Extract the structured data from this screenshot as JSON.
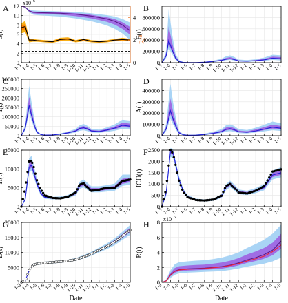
{
  "figure": {
    "xlabel_left": "Date",
    "xlabel_right": "Date"
  },
  "colors": {
    "band_outer": "#a9d4f5",
    "band_inner": "#9d5be0",
    "line_blue": "#1f1fd6",
    "line_purple": "#5a1a8a",
    "rt_band_outer": "#f7b21a",
    "rt_band_inner": "#ff7a00",
    "rt_line": "#000000",
    "rt_axis": "#e8742a",
    "obs_marker": "#000000",
    "r_obs_line": "#e8203a"
  },
  "date_ticks": [
    "1-3",
    "1-4",
    "1-5",
    "1-6",
    "1-7",
    "1-8",
    "1-9",
    "1-10",
    "1-11",
    "1-12",
    "1-1",
    "1-2",
    "1-3",
    "1-4",
    "1-5"
  ],
  "chart_data": [
    {
      "panel": "A",
      "type": "area",
      "ylabel": "S(t)",
      "y2label": "R",
      "y2label_sub": "0",
      "y2label_sup": "eff",
      "y_exponent_label": "x10",
      "y_exponent_power": "6",
      "ylim": [
        0,
        12000000
      ],
      "yticks": [
        "0",
        "2",
        "4",
        "6",
        "8",
        "10",
        "12"
      ],
      "y2lim": [
        0,
        5
      ],
      "y2ticks": [
        "0",
        "2",
        "4"
      ],
      "x": [
        0,
        0.5,
        1,
        1.5,
        2,
        3,
        4,
        5,
        6,
        7,
        8,
        9,
        10,
        11,
        12,
        13,
        14
      ],
      "series": [
        {
          "name": "S(t)",
          "values": [
            12000000,
            11800000,
            11000000,
            10700000,
            10650000,
            10600000,
            10550000,
            10500000,
            10400000,
            10300000,
            10100000,
            9900000,
            9600000,
            9300000,
            8800000,
            8000000,
            6800000
          ],
          "lo95": [
            12000000,
            11700000,
            10700000,
            10200000,
            10100000,
            10000000,
            9900000,
            9800000,
            9600000,
            9400000,
            9100000,
            8800000,
            8400000,
            7900000,
            7200000,
            6200000,
            4800000
          ],
          "hi95": [
            12000000,
            11900000,
            11300000,
            11100000,
            11050000,
            11000000,
            10950000,
            10900000,
            10850000,
            10800000,
            10650000,
            10500000,
            10300000,
            10100000,
            9800000,
            9300000,
            8500000
          ]
        },
        {
          "name": "Reff",
          "axis": "right",
          "values": [
            3.1,
            3.2,
            2.0,
            2.0,
            1.95,
            1.9,
            1.85,
            2.05,
            2.1,
            1.9,
            2.05,
            1.9,
            1.85,
            1.9,
            2.0,
            2.05,
            2.0
          ],
          "lo95": [
            2.6,
            2.7,
            1.8,
            1.85,
            1.85,
            1.8,
            1.75,
            1.9,
            1.95,
            1.8,
            1.9,
            1.8,
            1.75,
            1.8,
            1.9,
            1.9,
            1.9
          ],
          "hi95": [
            3.5,
            3.7,
            2.15,
            2.1,
            2.05,
            2.0,
            1.95,
            2.2,
            2.25,
            2.0,
            2.15,
            2.0,
            1.95,
            2.0,
            2.1,
            2.2,
            2.1
          ]
        },
        {
          "name": "threshold",
          "axis": "right",
          "values": [
            1,
            1
          ],
          "x": [
            0,
            14
          ],
          "dashed": true
        }
      ]
    },
    {
      "panel": "B",
      "type": "area",
      "ylabel": "E(t)",
      "ylim": [
        0,
        1000000
      ],
      "yticks": [
        "0",
        "200000",
        "400000",
        "600000",
        "800000"
      ],
      "x": [
        0,
        0.5,
        0.8,
        1.2,
        1.6,
        2,
        2.5,
        3,
        4,
        5,
        6,
        7,
        7.5,
        8,
        8.5,
        9,
        10,
        11,
        12,
        13,
        14
      ],
      "series": [
        {
          "name": "E(t)",
          "values": [
            0,
            120000,
            390000,
            230000,
            80000,
            20000,
            5000,
            2000,
            3000,
            8000,
            20000,
            40000,
            60000,
            70000,
            55000,
            30000,
            25000,
            35000,
            50000,
            80000,
            70000
          ],
          "lo95": [
            0,
            80000,
            250000,
            150000,
            50000,
            12000,
            3000,
            1000,
            2000,
            5000,
            14000,
            28000,
            42000,
            50000,
            38000,
            20000,
            16000,
            22000,
            30000,
            50000,
            40000
          ],
          "hi95": [
            0,
            200000,
            950000,
            500000,
            160000,
            45000,
            10000,
            4000,
            5000,
            14000,
            35000,
            70000,
            110000,
            130000,
            100000,
            55000,
            45000,
            60000,
            90000,
            140000,
            130000
          ]
        }
      ]
    },
    {
      "panel": "C",
      "type": "area",
      "ylabel": "I(t)",
      "ylim": [
        0,
        300000
      ],
      "yticks": [
        "0",
        "50000",
        "100000",
        "150000",
        "200000",
        "250000",
        "300000"
      ],
      "x": [
        0,
        0.5,
        1,
        1.3,
        1.7,
        2,
        2.5,
        3,
        4,
        5,
        6,
        7,
        7.5,
        8,
        8.5,
        9,
        10,
        11,
        12,
        13,
        14
      ],
      "series": [
        {
          "name": "I(t)",
          "values": [
            0,
            40000,
            160000,
            110000,
            50000,
            18000,
            6000,
            3000,
            4000,
            8000,
            15000,
            25000,
            38000,
            42000,
            36000,
            25000,
            22000,
            30000,
            40000,
            55000,
            50000
          ],
          "lo95": [
            0,
            28000,
            120000,
            80000,
            35000,
            12000,
            4000,
            2000,
            2500,
            5000,
            10000,
            17000,
            26000,
            29000,
            24000,
            17000,
            15000,
            20000,
            26000,
            36000,
            32000
          ],
          "hi95": [
            0,
            60000,
            265000,
            180000,
            80000,
            28000,
            9000,
            5000,
            6000,
            12000,
            22000,
            36000,
            55000,
            62000,
            52000,
            36000,
            32000,
            44000,
            60000,
            85000,
            80000
          ]
        }
      ]
    },
    {
      "panel": "D",
      "type": "area",
      "ylabel": "A(t)",
      "ylim": [
        0,
        500000
      ],
      "yticks": [
        "0",
        "100000",
        "200000",
        "300000",
        "400000"
      ],
      "x": [
        0,
        0.5,
        1,
        1.3,
        1.7,
        2,
        2.5,
        3,
        4,
        5,
        6,
        7,
        7.5,
        8,
        8.5,
        9,
        10,
        11,
        12,
        13,
        14
      ],
      "series": [
        {
          "name": "A(t)",
          "values": [
            0,
            60000,
            220000,
            150000,
            70000,
            25000,
            8000,
            4000,
            5000,
            10000,
            20000,
            35000,
            55000,
            62000,
            52000,
            35000,
            30000,
            42000,
            58000,
            75000,
            65000
          ],
          "lo95": [
            0,
            40000,
            150000,
            100000,
            45000,
            16000,
            5000,
            2500,
            3000,
            6000,
            13000,
            23000,
            36000,
            40000,
            34000,
            23000,
            20000,
            28000,
            38000,
            48000,
            42000
          ],
          "hi95": [
            0,
            100000,
            460000,
            300000,
            130000,
            45000,
            14000,
            7000,
            9000,
            18000,
            34000,
            58000,
            90000,
            100000,
            85000,
            58000,
            50000,
            70000,
            96000,
            125000,
            110000
          ]
        }
      ]
    },
    {
      "panel": "E",
      "type": "area",
      "ylabel": "H(t)",
      "ylim": [
        0,
        15000
      ],
      "yticks": [
        "0",
        "5000",
        "10000",
        "15000"
      ],
      "x": [
        0,
        0.5,
        1,
        1.3,
        1.6,
        2,
        2.5,
        3,
        4,
        5,
        6,
        7,
        7.5,
        8,
        8.5,
        9,
        10,
        11,
        12,
        13,
        14
      ],
      "series": [
        {
          "name": "H(t) fit",
          "values": [
            0,
            2000,
            10500,
            11000,
            9000,
            6000,
            3500,
            2500,
            2200,
            2300,
            2600,
            3500,
            5500,
            6000,
            5200,
            4500,
            4500,
            4800,
            5000,
            6500,
            7000
          ],
          "lo95": [
            0,
            1500,
            9000,
            9500,
            7800,
            5200,
            3000,
            2100,
            1900,
            2000,
            2200,
            3000,
            4700,
            5100,
            4400,
            3800,
            3800,
            4000,
            4200,
            5500,
            5800
          ],
          "hi95": [
            0,
            2600,
            12800,
            13500,
            11000,
            7400,
            4300,
            3000,
            2600,
            2700,
            3100,
            4200,
            6600,
            7200,
            6300,
            5400,
            5400,
            5700,
            6100,
            8500,
            8500
          ]
        },
        {
          "name": "H(t) observed",
          "markers": true,
          "values": [
            0,
            5000,
            12000,
            12200,
            10500,
            7000,
            4500,
            3000,
            2300,
            2200,
            2600,
            3800,
            5800,
            6200,
            5000,
            4200,
            4500,
            5000,
            5000,
            6800,
            7200
          ]
        }
      ]
    },
    {
      "panel": "F",
      "type": "area",
      "ylabel": "ICU(t)",
      "ylim": [
        0,
        2500
      ],
      "yticks": [
        "0",
        "500",
        "1000",
        "1500",
        "2000",
        "2500"
      ],
      "x": [
        0,
        0.5,
        1,
        1.3,
        1.6,
        2,
        2.5,
        3,
        4,
        5,
        6,
        7,
        7.5,
        8,
        8.5,
        9,
        10,
        11,
        12,
        13,
        14
      ],
      "series": [
        {
          "name": "ICU(t) fit",
          "values": [
            0,
            600,
            2450,
            2400,
            1900,
            1200,
            700,
            450,
            300,
            270,
            300,
            450,
            850,
            1000,
            850,
            650,
            600,
            700,
            850,
            1400,
            1500
          ],
          "lo95": [
            0,
            450,
            2200,
            2150,
            1700,
            1050,
            600,
            380,
            250,
            220,
            250,
            380,
            720,
            850,
            720,
            550,
            510,
            600,
            720,
            1200,
            1300
          ],
          "hi95": [
            0,
            750,
            2600,
            2550,
            2050,
            1350,
            800,
            520,
            350,
            320,
            360,
            540,
            980,
            1150,
            980,
            760,
            700,
            820,
            1000,
            1600,
            1750
          ]
        },
        {
          "name": "ICU(t) observed",
          "markers": true,
          "values": [
            0,
            800,
            2500,
            2350,
            1850,
            1150,
            650,
            420,
            290,
            270,
            310,
            480,
            900,
            1000,
            830,
            620,
            580,
            700,
            900,
            1550,
            1650
          ]
        }
      ]
    },
    {
      "panel": "G",
      "type": "area",
      "ylabel": "D(t)",
      "ylim": [
        0,
        20000
      ],
      "yticks": [
        "0",
        "5000",
        "10000",
        "15000",
        "20000"
      ],
      "x": [
        0,
        0.5,
        1,
        1.5,
        2,
        3,
        4,
        5,
        6,
        7,
        8,
        9,
        10,
        11,
        12,
        13,
        14
      ],
      "series": [
        {
          "name": "D(t) fit",
          "values": [
            0,
            500,
            4000,
            5800,
            6200,
            6500,
            6700,
            6900,
            7200,
            7600,
            8500,
            9500,
            10800,
            12000,
            13500,
            15500,
            17500
          ],
          "lo95": [
            0,
            400,
            3700,
            5400,
            5800,
            6100,
            6300,
            6500,
            6800,
            7200,
            8000,
            8900,
            10000,
            11100,
            12400,
            14200,
            15900
          ],
          "hi95": [
            0,
            600,
            4300,
            6200,
            6600,
            6900,
            7100,
            7300,
            7600,
            8100,
            9100,
            10200,
            11600,
            13000,
            14700,
            16900,
            19200
          ]
        },
        {
          "name": "D(t) observed",
          "markers": true,
          "hollow": true,
          "values": [
            0,
            500,
            4000,
            5800,
            6200,
            6500,
            6700,
            6900,
            7200,
            7600,
            8500,
            9500,
            10800,
            12000,
            13500,
            15500,
            17500
          ]
        }
      ]
    },
    {
      "panel": "H",
      "type": "area",
      "ylabel": "R(t)",
      "y_exponent_label": "x10",
      "y_exponent_power": "6",
      "ylim": [
        0,
        8000000
      ],
      "yticks": [
        "0",
        "2",
        "4",
        "6",
        "8"
      ],
      "x": [
        0,
        0.5,
        1,
        1.5,
        2,
        3,
        4,
        5,
        6,
        7,
        8,
        9,
        10,
        11,
        12,
        13,
        14
      ],
      "series": [
        {
          "name": "R(t) fit",
          "values": [
            0,
            200000,
            1000000,
            1500000,
            1700000,
            1800000,
            1850000,
            1900000,
            2000000,
            2100000,
            2300000,
            2600000,
            3000000,
            3300000,
            3700000,
            4300000,
            5500000
          ],
          "lo95": [
            0,
            100000,
            600000,
            1000000,
            1200000,
            1300000,
            1350000,
            1400000,
            1450000,
            1500000,
            1650000,
            1850000,
            2100000,
            2300000,
            2500000,
            2800000,
            3300000
          ],
          "hi95": [
            0,
            400000,
            1600000,
            2400000,
            2700000,
            2800000,
            2900000,
            2950000,
            3100000,
            3300000,
            3600000,
            4000000,
            4600000,
            5100000,
            5700000,
            6500000,
            7700000
          ]
        },
        {
          "name": "R(t) observed",
          "color": "r_obs_line",
          "values": [
            0,
            180000,
            950000,
            1450000,
            1650000,
            1750000,
            1800000,
            1850000,
            1950000,
            2050000,
            2250000,
            2500000,
            2850000,
            3150000,
            3500000,
            4100000,
            5000000
          ]
        }
      ]
    }
  ]
}
